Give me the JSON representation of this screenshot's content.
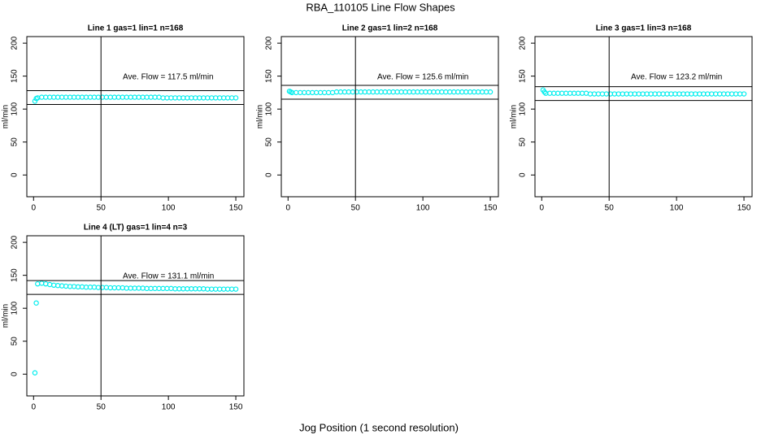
{
  "title": "RBA_110105  Line Flow Shapes",
  "xlabel": "Jog Position (1 second resolution)",
  "chart_data": [
    {
      "type": "scatter",
      "title": "Line 1 gas=1 lin=1 n=168",
      "ylabel": "ml/min",
      "annotation": "Ave. Flow =  117.5  ml/min",
      "x": [
        1,
        2,
        3,
        6,
        9,
        12,
        15,
        18,
        21,
        24,
        27,
        30,
        33,
        36,
        39,
        42,
        45,
        48,
        51,
        54,
        57,
        60,
        63,
        66,
        69,
        72,
        75,
        78,
        81,
        84,
        87,
        90,
        93,
        96,
        99,
        102,
        105,
        108,
        111,
        114,
        117,
        120,
        123,
        126,
        129,
        132,
        135,
        138,
        141,
        144,
        147,
        150
      ],
      "values": [
        112,
        116,
        117,
        118,
        118,
        118,
        118,
        118,
        118,
        118,
        118,
        118,
        118,
        118,
        118,
        118,
        118,
        118,
        118,
        118,
        118,
        118,
        118,
        118,
        118,
        118,
        118,
        118,
        118,
        118,
        118,
        118,
        118,
        117,
        117,
        117,
        117,
        117,
        117,
        117,
        117,
        117,
        117,
        117,
        117,
        117,
        117,
        117,
        117,
        117,
        117,
        117
      ],
      "color": "#00eeee",
      "xlim": [
        -5,
        156
      ],
      "ylim": [
        -33,
        210
      ],
      "xticks": [
        0,
        50,
        100,
        150
      ],
      "yticks": [
        0,
        50,
        100,
        150,
        200
      ],
      "hlines": [
        107,
        128
      ],
      "vlines": [
        50
      ]
    },
    {
      "type": "scatter",
      "title": "Line 2 gas=1 lin=2 n=168",
      "ylabel": "ml/min",
      "annotation": "Ave. Flow =  125.6  ml/min",
      "x": [
        1,
        2,
        3,
        6,
        9,
        12,
        15,
        18,
        21,
        24,
        27,
        30,
        33,
        36,
        39,
        42,
        45,
        48,
        51,
        54,
        57,
        60,
        63,
        66,
        69,
        72,
        75,
        78,
        81,
        84,
        87,
        90,
        93,
        96,
        99,
        102,
        105,
        108,
        111,
        114,
        117,
        120,
        123,
        126,
        129,
        132,
        135,
        138,
        141,
        144,
        147,
        150
      ],
      "values": [
        127,
        126,
        125,
        125,
        125,
        125,
        125,
        125,
        125,
        125,
        125,
        125,
        125,
        126,
        126,
        126,
        126,
        126,
        126,
        126,
        126,
        126,
        126,
        126,
        126,
        126,
        126,
        126,
        126,
        126,
        126,
        126,
        126,
        126,
        126,
        126,
        126,
        126,
        126,
        126,
        126,
        126,
        126,
        126,
        126,
        126,
        126,
        126,
        126,
        126,
        126,
        126
      ],
      "color": "#00eeee",
      "xlim": [
        -5,
        156
      ],
      "ylim": [
        -33,
        210
      ],
      "xticks": [
        0,
        50,
        100,
        150
      ],
      "yticks": [
        0,
        50,
        100,
        150,
        200
      ],
      "hlines": [
        115,
        136
      ],
      "vlines": [
        50
      ]
    },
    {
      "type": "scatter",
      "title": "Line 3 gas=1 lin=3 n=168",
      "ylabel": "ml/min",
      "annotation": "Ave. Flow =  123.2  ml/min",
      "x": [
        1,
        2,
        3,
        6,
        9,
        12,
        15,
        18,
        21,
        24,
        27,
        30,
        33,
        36,
        39,
        42,
        45,
        48,
        51,
        54,
        57,
        60,
        63,
        66,
        69,
        72,
        75,
        78,
        81,
        84,
        87,
        90,
        93,
        96,
        99,
        102,
        105,
        108,
        111,
        114,
        117,
        120,
        123,
        126,
        129,
        132,
        135,
        138,
        141,
        144,
        147,
        150
      ],
      "values": [
        129,
        126,
        124,
        124,
        124,
        124,
        124,
        124,
        124,
        124,
        124,
        124,
        124,
        123,
        123,
        123,
        123,
        123,
        123,
        123,
        123,
        123,
        123,
        123,
        123,
        123,
        123,
        123,
        123,
        123,
        123,
        123,
        123,
        123,
        123,
        123,
        123,
        123,
        123,
        123,
        123,
        123,
        123,
        123,
        123,
        123,
        123,
        123,
        123,
        123,
        123,
        123
      ],
      "color": "#00eeee",
      "xlim": [
        -5,
        156
      ],
      "ylim": [
        -33,
        210
      ],
      "xticks": [
        0,
        50,
        100,
        150
      ],
      "yticks": [
        0,
        50,
        100,
        150,
        200
      ],
      "hlines": [
        113,
        134
      ],
      "vlines": [
        50
      ]
    },
    {
      "type": "scatter",
      "title": "Line 4 (LT) gas=1 lin=4 n=3",
      "ylabel": "ml/min",
      "annotation": "Ave. Flow =  131.1  ml/min",
      "x": [
        1,
        2,
        3,
        6,
        9,
        12,
        15,
        18,
        21,
        24,
        27,
        30,
        33,
        36,
        39,
        42,
        45,
        48,
        51,
        54,
        57,
        60,
        63,
        66,
        69,
        72,
        75,
        78,
        81,
        84,
        87,
        90,
        93,
        96,
        99,
        102,
        105,
        108,
        111,
        114,
        117,
        120,
        123,
        126,
        129,
        132,
        135,
        138,
        141,
        144,
        147,
        150
      ],
      "values": [
        2,
        108,
        137,
        138,
        137,
        136,
        135,
        134.5,
        134,
        133.5,
        133,
        133,
        132.5,
        132.5,
        132,
        132,
        132,
        131.5,
        131.5,
        131.5,
        131,
        131,
        131,
        131,
        130.5,
        130.5,
        130.5,
        130.5,
        130.5,
        130,
        130,
        130,
        130,
        130,
        130,
        130,
        129.5,
        129.5,
        129.5,
        129.5,
        129.5,
        129.5,
        129.5,
        129.5,
        129,
        129,
        129,
        129,
        129,
        129,
        129,
        129
      ],
      "color": "#00eeee",
      "xlim": [
        -5,
        156
      ],
      "ylim": [
        -33,
        210
      ],
      "xticks": [
        0,
        50,
        100,
        150
      ],
      "yticks": [
        0,
        50,
        100,
        150,
        200
      ],
      "hlines": [
        121,
        142
      ],
      "vlines": [
        50
      ]
    }
  ]
}
